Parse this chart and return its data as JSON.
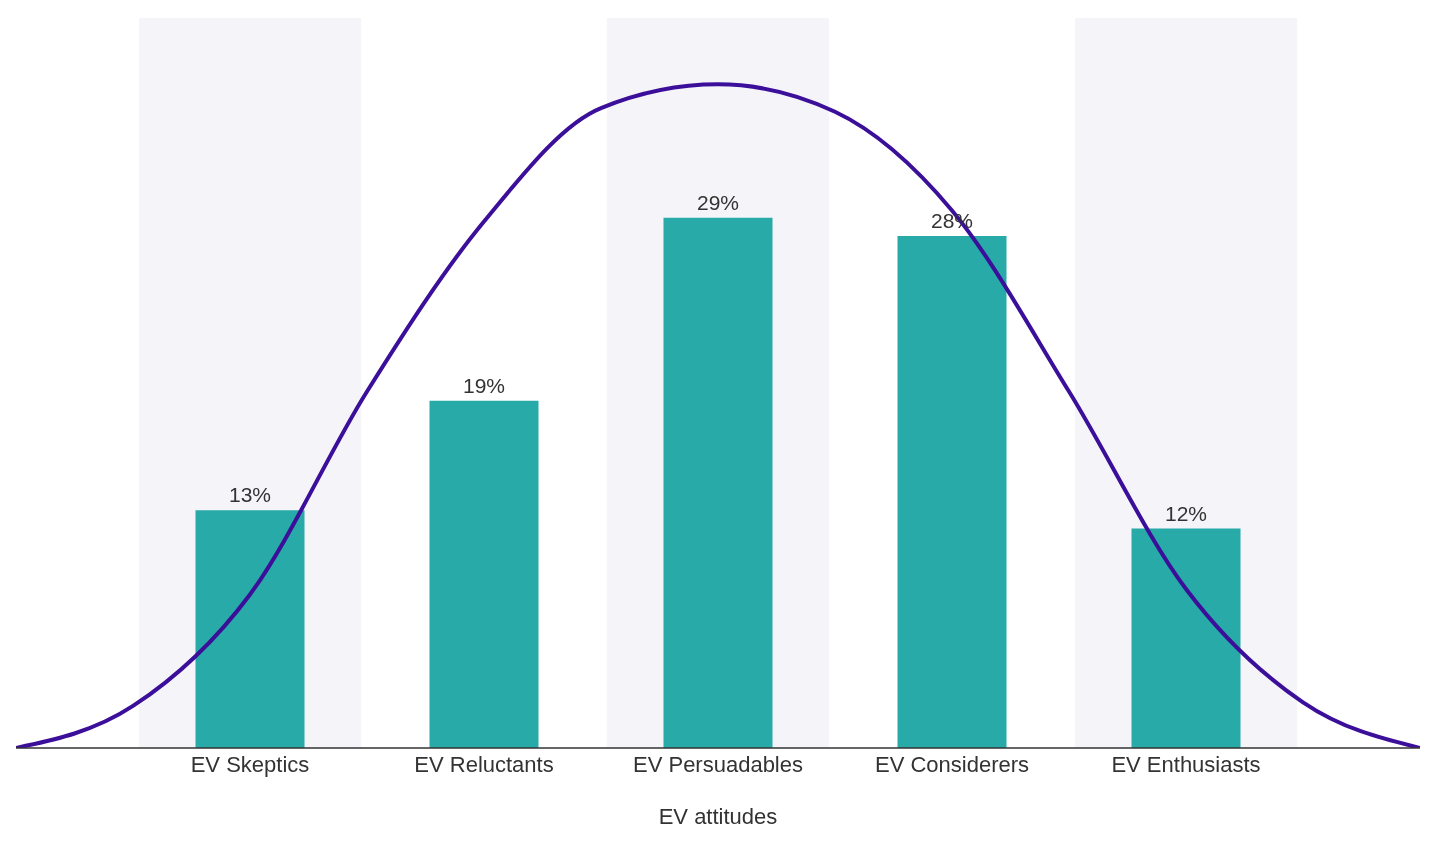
{
  "chart_data": {
    "type": "bar",
    "xlabel": "EV attitudes",
    "categories": [
      null,
      null,
      "EV Skeptics",
      null,
      "EV Reluctants",
      null,
      "EV Persuadables",
      null,
      "EV Considerers",
      null,
      "EV Enthusiasts",
      null,
      null
    ],
    "series": [
      {
        "color": "#27aaa8",
        "values": [
          null,
          null,
          13,
          null,
          19,
          null,
          29,
          null,
          28,
          null,
          12,
          null,
          null
        ],
        "value_labels": [
          null,
          null,
          "13%",
          null,
          "19%",
          null,
          "29%",
          null,
          "28%",
          null,
          "12%",
          null,
          null
        ]
      },
      {
        "type": "line",
        "color": "#3b0f9a",
        "values": [
          0,
          2.3,
          8.4,
          19.5,
          28.8,
          35.0,
          36.3,
          34.8,
          29.4,
          19.5,
          8.7,
          2.5,
          0
        ]
      }
    ],
    "grid": false,
    "legend": false,
    "tick_labels": "x",
    "marker": "none",
    "line_style": "solid"
  }
}
